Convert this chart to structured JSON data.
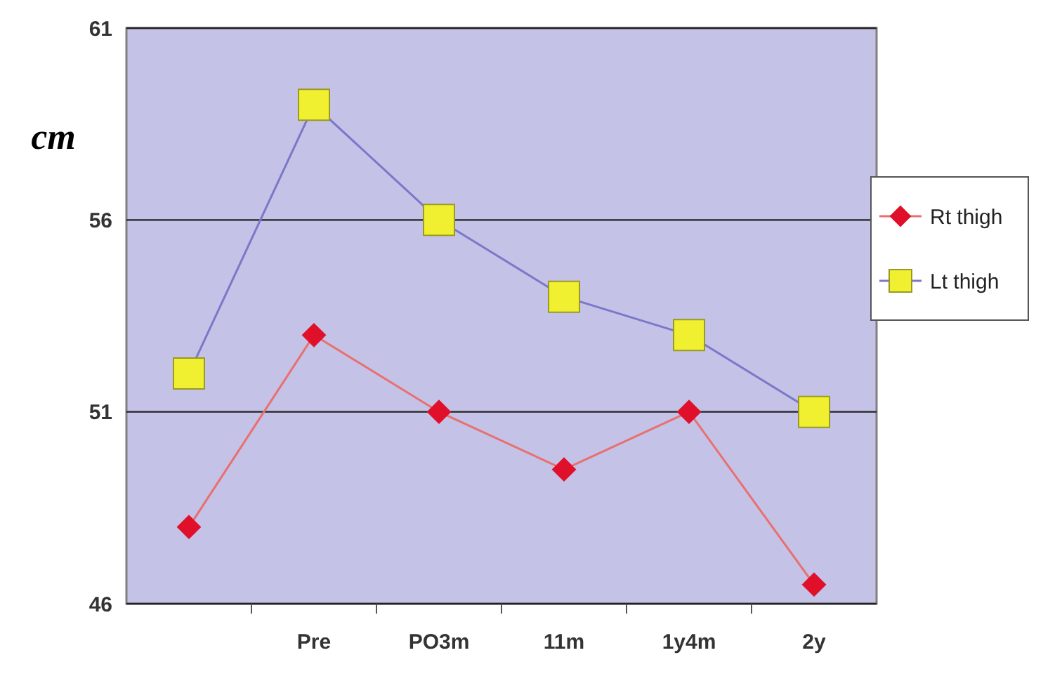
{
  "chart_data": {
    "type": "line",
    "ylabel": "cm",
    "categories": [
      null,
      "Pre",
      "PO3m",
      "11m",
      "1y4m",
      "2y"
    ],
    "series": [
      {
        "name": "Rt thigh",
        "color": "#e87070",
        "colors": [
          "#e0102a",
          "#e0102a",
          "#e0102a",
          "#e0102a",
          "#e0102a",
          "#e0102a"
        ],
        "marker": "diamond",
        "values": [
          48,
          53,
          51,
          49.5,
          51,
          46.5
        ]
      },
      {
        "name": "Lt thigh",
        "color": "#7a78c8",
        "colors": [
          "#f0f030",
          "#f0f030",
          "#f0f030",
          "#f0f030",
          "#f0f030",
          "#f0f030"
        ],
        "marker": "square",
        "values": [
          52,
          59,
          56,
          54,
          53,
          51
        ]
      }
    ],
    "ylim": [
      46,
      61
    ],
    "yticks": [
      46,
      51,
      56,
      61
    ],
    "grid": "y",
    "legend": "right"
  }
}
